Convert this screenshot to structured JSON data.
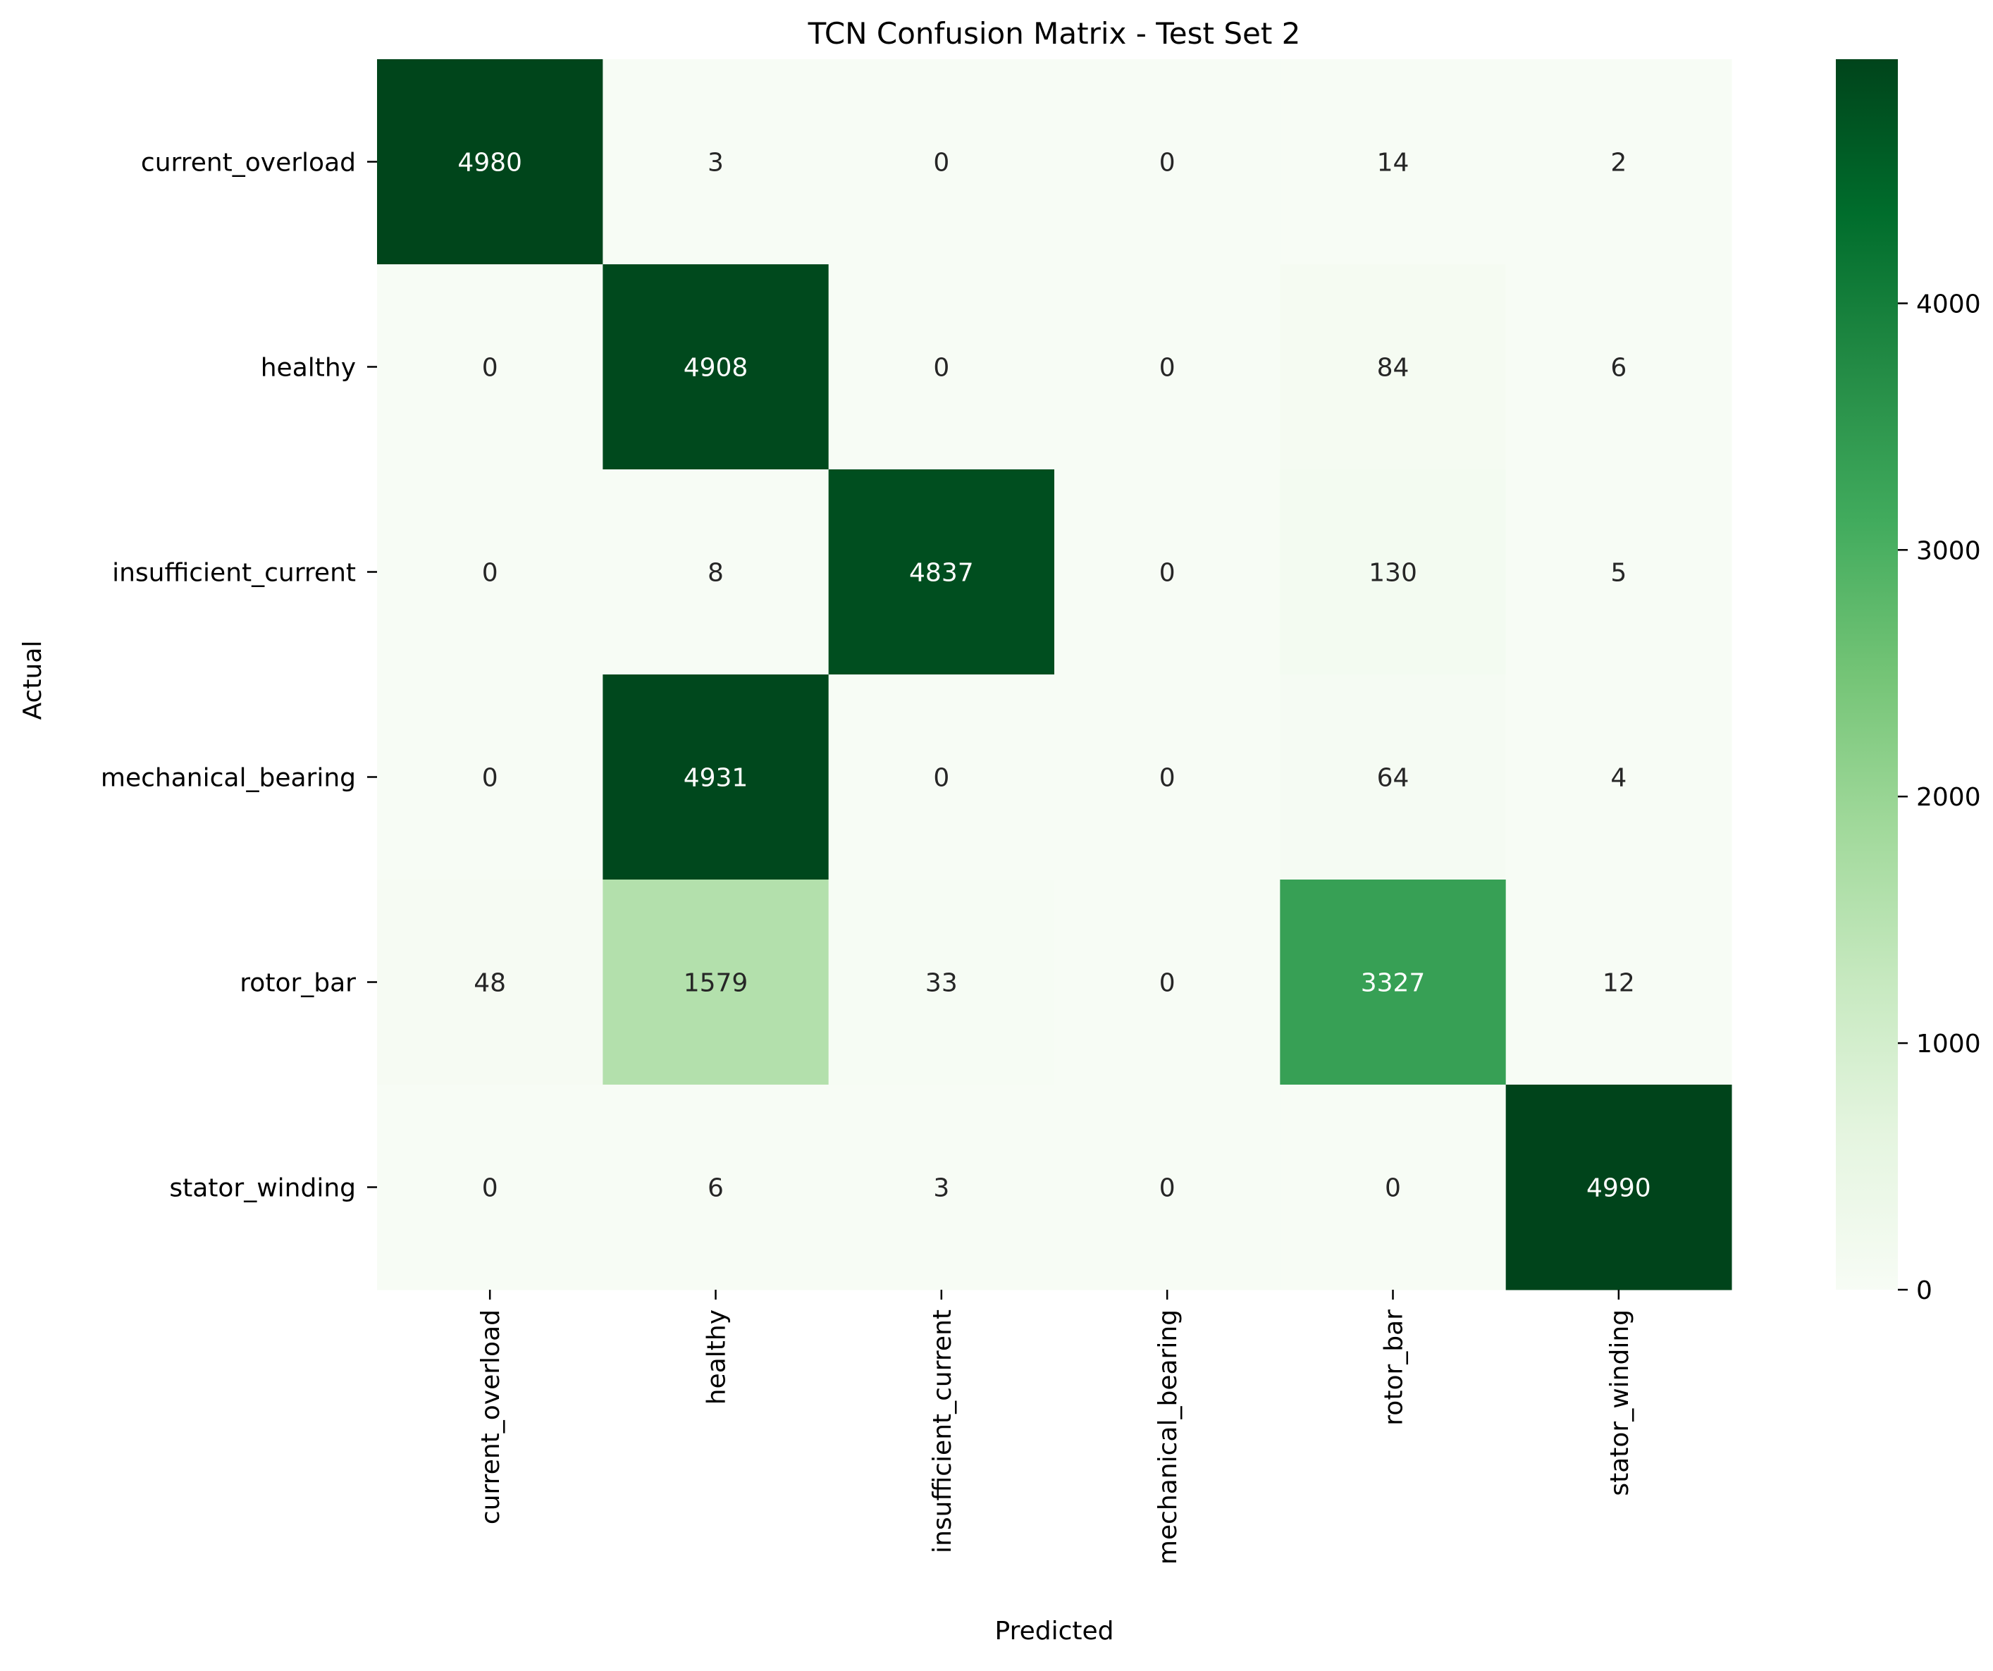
{
  "chart_data": {
    "type": "heatmap",
    "title": "TCN Confusion Matrix - Test Set 2",
    "xlabel": "Predicted",
    "ylabel": "Actual",
    "x_categories": [
      "current_overload",
      "healthy",
      "insufficient_current",
      "mechanical_bearing",
      "rotor_bar",
      "stator_winding"
    ],
    "y_categories": [
      "current_overload",
      "healthy",
      "insufficient_current",
      "mechanical_bearing",
      "rotor_bar",
      "stator_winding"
    ],
    "values": [
      [
        4980,
        3,
        0,
        0,
        14,
        2
      ],
      [
        0,
        4908,
        0,
        0,
        84,
        6
      ],
      [
        0,
        8,
        4837,
        0,
        130,
        5
      ],
      [
        0,
        4931,
        0,
        0,
        64,
        4
      ],
      [
        48,
        1579,
        33,
        0,
        3327,
        12
      ],
      [
        0,
        6,
        3,
        0,
        0,
        4990
      ]
    ],
    "colormap": "Greens",
    "colorbar": {
      "ticks": [
        0,
        1000,
        2000,
        3000,
        4000
      ],
      "tick_labels": [
        "0",
        "1000",
        "2000",
        "3000",
        "4000"
      ],
      "range": [
        0,
        4990
      ]
    },
    "colors": {
      "greens": [
        "#f7fcf5",
        "#e5f5e0",
        "#c7e9c0",
        "#a1d99b",
        "#74c476",
        "#41ab5d",
        "#238b45",
        "#006d2c",
        "#00441b"
      ],
      "text_dark": "#262626",
      "text_light": "#ffffff"
    }
  }
}
